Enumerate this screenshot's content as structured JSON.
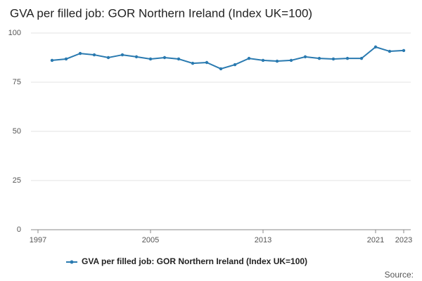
{
  "chart_data": {
    "type": "line",
    "title": "GVA per filled job: GOR Northern Ireland (Index UK=100)",
    "x": [
      1998,
      1999,
      2000,
      2001,
      2002,
      2003,
      2004,
      2005,
      2006,
      2007,
      2008,
      2009,
      2010,
      2011,
      2012,
      2013,
      2014,
      2015,
      2016,
      2017,
      2018,
      2019,
      2020,
      2021,
      2022,
      2023
    ],
    "series": [
      {
        "name": "GVA per filled job: GOR Northern Ireland (Index UK=100)",
        "color": "#2a7ab0",
        "values": [
          86.1,
          86.8,
          89.6,
          88.9,
          87.5,
          88.9,
          87.9,
          86.8,
          87.5,
          86.8,
          84.6,
          85.0,
          81.8,
          83.9,
          87.1,
          86.1,
          85.7,
          86.1,
          87.9,
          87.1,
          86.8,
          87.1,
          87.1,
          92.9,
          90.7,
          91.1
        ]
      }
    ],
    "xlim": [
      1996.5,
      2023.5
    ],
    "xticks": [
      1997,
      2005,
      2013,
      2021,
      2023
    ],
    "ylim": [
      0,
      100
    ],
    "yticks": [
      0,
      25,
      50,
      75,
      100
    ],
    "grid": true,
    "source_label": "Source:"
  }
}
